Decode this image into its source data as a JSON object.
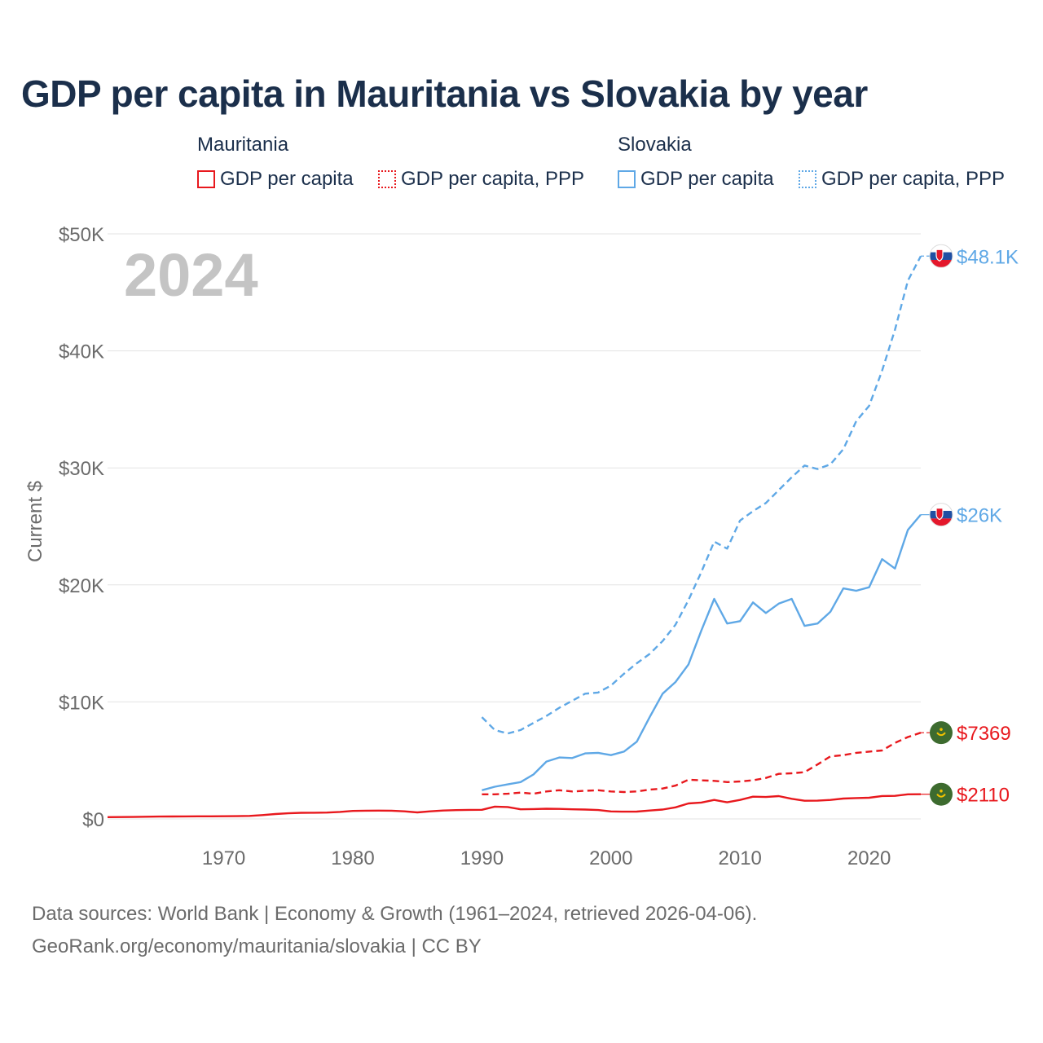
{
  "title": "GDP per capita in Mauritania vs Slovakia by year",
  "legend": {
    "groups": [
      {
        "name": "Mauritania",
        "items": [
          {
            "label": "GDP per capita",
            "style": "solid",
            "color": "#e8181d"
          },
          {
            "label": "GDP per capita, PPP",
            "style": "dotted",
            "color": "#e8181d"
          }
        ]
      },
      {
        "name": "Slovakia",
        "items": [
          {
            "label": "GDP per capita",
            "style": "solid",
            "color": "#5fa8e6"
          },
          {
            "label": "GDP per capita, PPP",
            "style": "dotted",
            "color": "#5fa8e6"
          }
        ]
      }
    ]
  },
  "chart_data": {
    "type": "line",
    "title": "GDP per capita in Mauritania vs Slovakia by year",
    "year_label": "2024",
    "xlabel": "",
    "ylabel": "Current $",
    "xlim": [
      1961,
      2024
    ],
    "ylim": [
      0,
      50000
    ],
    "x_ticks": [
      1970,
      1980,
      1990,
      2000,
      2010,
      2020
    ],
    "y_ticks": [
      {
        "value": 0,
        "label": "$0"
      },
      {
        "value": 10000,
        "label": "$10K"
      },
      {
        "value": 20000,
        "label": "$20K"
      },
      {
        "value": 30000,
        "label": "$30K"
      },
      {
        "value": 40000,
        "label": "$40K"
      },
      {
        "value": 50000,
        "label": "$50K"
      }
    ],
    "grid": true,
    "series": [
      {
        "name": "Mauritania GDP per capita",
        "color": "#e8181d",
        "dash": "solid",
        "end_label": "$2110",
        "flag": "mauritania",
        "x": [
          1961,
          1962,
          1963,
          1964,
          1965,
          1966,
          1967,
          1968,
          1969,
          1970,
          1971,
          1972,
          1973,
          1974,
          1975,
          1976,
          1977,
          1978,
          1979,
          1980,
          1981,
          1982,
          1983,
          1984,
          1985,
          1986,
          1987,
          1988,
          1989,
          1990,
          1991,
          1992,
          1993,
          1994,
          1995,
          1996,
          1997,
          1998,
          1999,
          2000,
          2001,
          2002,
          2003,
          2004,
          2005,
          2006,
          2007,
          2008,
          2009,
          2010,
          2011,
          2012,
          2013,
          2014,
          2015,
          2016,
          2017,
          2018,
          2019,
          2020,
          2021,
          2022,
          2023,
          2024
        ],
        "values": [
          150,
          160,
          170,
          190,
          200,
          210,
          215,
          220,
          225,
          230,
          240,
          260,
          330,
          420,
          480,
          520,
          530,
          540,
          600,
          680,
          700,
          710,
          700,
          650,
          560,
          650,
          720,
          750,
          770,
          780,
          1050,
          1020,
          820,
          840,
          870,
          860,
          820,
          800,
          760,
          640,
          620,
          630,
          720,
          800,
          990,
          1320,
          1400,
          1620,
          1420,
          1620,
          1900,
          1870,
          1950,
          1720,
          1550,
          1560,
          1620,
          1740,
          1780,
          1810,
          1960,
          1970,
          2100,
          2110
        ]
      },
      {
        "name": "Mauritania GDP per capita, PPP",
        "color": "#e8181d",
        "dash": "dashed",
        "end_label": "$7369",
        "flag": "mauritania",
        "x": [
          1990,
          1991,
          1992,
          1993,
          1994,
          1995,
          1996,
          1997,
          1998,
          1999,
          2000,
          2001,
          2002,
          2003,
          2004,
          2005,
          2006,
          2007,
          2008,
          2009,
          2010,
          2011,
          2012,
          2013,
          2014,
          2015,
          2016,
          2017,
          2018,
          2019,
          2020,
          2021,
          2022,
          2023,
          2024
        ],
        "values": [
          2100,
          2100,
          2150,
          2250,
          2150,
          2350,
          2450,
          2350,
          2400,
          2450,
          2350,
          2300,
          2350,
          2500,
          2600,
          2850,
          3350,
          3300,
          3250,
          3150,
          3200,
          3300,
          3500,
          3850,
          3900,
          4000,
          4650,
          5350,
          5450,
          5650,
          5750,
          5850,
          6500,
          7000,
          7369
        ]
      },
      {
        "name": "Slovakia GDP per capita",
        "color": "#5fa8e6",
        "dash": "solid",
        "end_label": "$26K",
        "flag": "slovakia",
        "x": [
          1990,
          1991,
          1992,
          1993,
          1994,
          1995,
          1996,
          1997,
          1998,
          1999,
          2000,
          2001,
          2002,
          2003,
          2004,
          2005,
          2006,
          2007,
          2008,
          2009,
          2010,
          2011,
          2012,
          2013,
          2014,
          2015,
          2016,
          2017,
          2018,
          2019,
          2020,
          2021,
          2022,
          2023,
          2024
        ],
        "values": [
          2450,
          2750,
          2950,
          3150,
          3800,
          4900,
          5250,
          5200,
          5600,
          5650,
          5450,
          5750,
          6600,
          8700,
          10700,
          11700,
          13200,
          16100,
          18800,
          16700,
          16900,
          18500,
          17600,
          18400,
          18800,
          16500,
          16700,
          17700,
          19700,
          19500,
          19800,
          22200,
          21400,
          24700,
          26000
        ]
      },
      {
        "name": "Slovakia GDP per capita, PPP",
        "color": "#5fa8e6",
        "dash": "dashed",
        "end_label": "$48.1K",
        "flag": "slovakia",
        "x": [
          1990,
          1991,
          1992,
          1993,
          1994,
          1995,
          1996,
          1997,
          1998,
          1999,
          2000,
          2001,
          2002,
          2003,
          2004,
          2005,
          2006,
          2007,
          2008,
          2009,
          2010,
          2011,
          2012,
          2013,
          2014,
          2015,
          2016,
          2017,
          2018,
          2019,
          2020,
          2021,
          2022,
          2023,
          2024
        ],
        "values": [
          8700,
          7600,
          7300,
          7600,
          8200,
          8800,
          9500,
          10100,
          10700,
          10800,
          11400,
          12400,
          13300,
          14100,
          15200,
          16600,
          18700,
          21100,
          23700,
          23100,
          25500,
          26300,
          27000,
          28100,
          29200,
          30200,
          29900,
          30300,
          31600,
          34000,
          35300,
          38300,
          41800,
          46000,
          48100
        ]
      }
    ]
  },
  "footer": {
    "line1": "Data sources: World Bank | Economy & Growth (1961–2024, retrieved 2026-04-06).",
    "line2": "GeoRank.org/economy/mauritania/slovakia | CC BY"
  }
}
